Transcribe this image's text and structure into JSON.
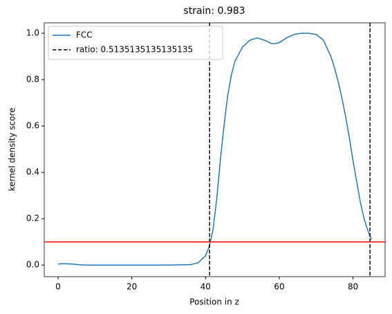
{
  "chart_data": {
    "type": "line",
    "title": "strain: 0.983",
    "xlabel": "Position in z",
    "ylabel": "kernel density score",
    "xlim": [
      -3.75,
      88.7
    ],
    "ylim": [
      -0.05,
      1.045
    ],
    "xticks": [
      0,
      20,
      40,
      60,
      80
    ],
    "yticks": [
      {
        "value": 0,
        "label": "0.0"
      },
      0.2,
      0.4,
      0.6,
      0.8,
      {
        "value": 1,
        "label": "1.0"
      }
    ],
    "legend": "upper left",
    "series": [
      {
        "name": "FCC",
        "color": "#1f77b4",
        "x": [
          0,
          2,
          4,
          6,
          8,
          10,
          20,
          30,
          36,
          38,
          40,
          41,
          42,
          43,
          44,
          45,
          46,
          47,
          48,
          50,
          52,
          54,
          56,
          58,
          59,
          60,
          62,
          64,
          66,
          68,
          70,
          72,
          74,
          75,
          76,
          77,
          78,
          79,
          80,
          81,
          82,
          83,
          84,
          85
        ],
        "values": [
          0.005,
          0.006,
          0.004,
          0.001,
          0,
          0,
          0,
          0,
          0.002,
          0.01,
          0.04,
          0.08,
          0.15,
          0.28,
          0.45,
          0.6,
          0.73,
          0.82,
          0.88,
          0.94,
          0.97,
          0.98,
          0.97,
          0.955,
          0.955,
          0.96,
          0.98,
          0.995,
          1.0,
          1.0,
          0.995,
          0.97,
          0.9,
          0.85,
          0.79,
          0.72,
          0.64,
          0.55,
          0.45,
          0.36,
          0.27,
          0.2,
          0.15,
          0.11
        ]
      }
    ],
    "vlines": {
      "name": "ratio: 0.5135135135135135",
      "color": "#000000",
      "x": [
        41.1,
        84.6
      ]
    },
    "hline": {
      "y": 0.1,
      "color": "#ff0000"
    }
  }
}
